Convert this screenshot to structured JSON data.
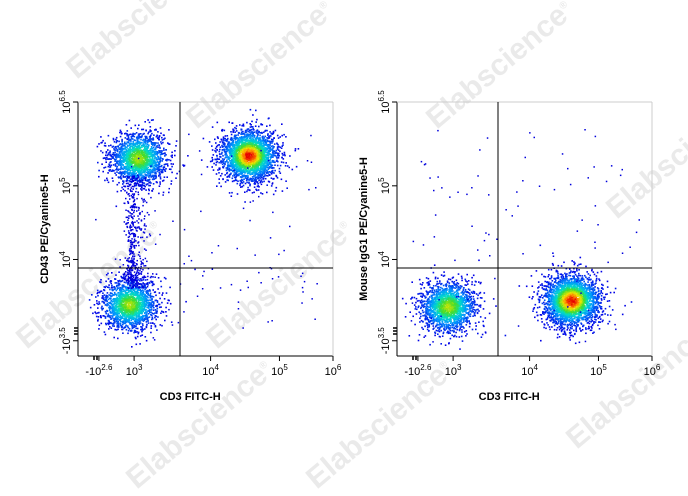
{
  "watermark": {
    "text": "Elabscience",
    "mark": "®"
  },
  "chart_data": [
    {
      "type": "scatter",
      "title": "",
      "xlabel": "CD3 FITC-H",
      "ylabel": "CD43 PE/Cyanine5-H",
      "x_ticks": [
        {
          "base": "-10",
          "exp": "2.6"
        },
        {
          "base": "10",
          "exp": "3"
        },
        {
          "base": "10",
          "exp": "4"
        },
        {
          "base": "10",
          "exp": "5"
        },
        {
          "base": "10",
          "exp": "6"
        }
      ],
      "y_ticks": [
        {
          "base": "10",
          "exp": "6.5"
        },
        {
          "base": "10",
          "exp": "5"
        },
        {
          "base": "10",
          "exp": "4"
        },
        {
          "base": "-10",
          "exp": "3.5"
        }
      ],
      "x_scale": "biexponential",
      "y_scale": "biexponential",
      "quadrant_gate": {
        "x": "10^3.5",
        "y": "10^3.9"
      },
      "color_map": "density (blue-cyan-green-yellow-red)",
      "populations": [
        {
          "name": "CD3- CD43+",
          "x_log": 3.05,
          "y_log": 5.5,
          "relative_density": "high"
        },
        {
          "name": "CD3+ CD43+",
          "x_log": 4.55,
          "y_log": 5.55,
          "relative_density": "highest"
        },
        {
          "name": "CD3- CD43-",
          "x_log": 2.85,
          "y_log": 2.9,
          "relative_density": "high"
        }
      ]
    },
    {
      "type": "scatter",
      "title": "",
      "xlabel": "CD3 FITC-H",
      "ylabel": "Mouse IgG1 PE/Cyanine5-H",
      "x_ticks": [
        {
          "base": "-10",
          "exp": "2.6"
        },
        {
          "base": "10",
          "exp": "3"
        },
        {
          "base": "10",
          "exp": "4"
        },
        {
          "base": "10",
          "exp": "5"
        },
        {
          "base": "10",
          "exp": "6"
        }
      ],
      "y_ticks": [
        {
          "base": "10",
          "exp": "6.5"
        },
        {
          "base": "10",
          "exp": "5"
        },
        {
          "base": "10",
          "exp": "4"
        },
        {
          "base": "-10",
          "exp": "3.5"
        }
      ],
      "x_scale": "biexponential",
      "y_scale": "biexponential",
      "quadrant_gate": {
        "x": "10^3.5",
        "y": "10^3.9"
      },
      "color_map": "density (blue-cyan-green-yellow-red)",
      "populations": [
        {
          "name": "CD3- isotype",
          "x_log": 2.85,
          "y_log": 2.85,
          "relative_density": "high"
        },
        {
          "name": "CD3+ isotype",
          "x_log": 4.6,
          "y_log": 3.0,
          "relative_density": "highest"
        }
      ]
    }
  ]
}
